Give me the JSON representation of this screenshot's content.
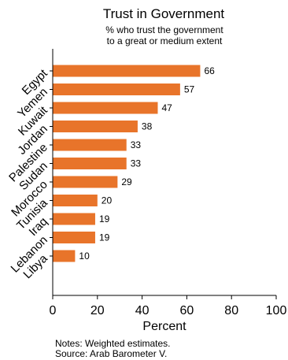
{
  "chart_data": {
    "type": "bar",
    "orientation": "horizontal",
    "title": "Trust in Government",
    "subtitle": [
      "% who trust the government",
      "to a great or medium extent"
    ],
    "categories": [
      "Egypt",
      "Yemen",
      "Kuwait",
      "Jordan",
      "Palestine",
      "Sudan",
      "Morocco",
      "Tunisia",
      "Iraq",
      "Lebanon",
      "Libya"
    ],
    "values": [
      66,
      57,
      47,
      38,
      33,
      33,
      29,
      20,
      19,
      19,
      10
    ],
    "data_labels": [
      "66",
      "57",
      "47",
      "38",
      "33",
      "33",
      "29",
      "20",
      "19",
      "19",
      "10"
    ],
    "xlabel": "Percent",
    "ylabel": "",
    "xlim": [
      0,
      100
    ],
    "xticks": [
      0,
      20,
      40,
      60,
      80,
      100
    ],
    "xtick_labels": [
      "0",
      "20",
      "40",
      "60",
      "80",
      "100"
    ],
    "grid": false,
    "bar_color": "#e8742a",
    "notes": [
      "Notes: Weighted estimates.",
      "Source: Arab Barometer V."
    ]
  }
}
